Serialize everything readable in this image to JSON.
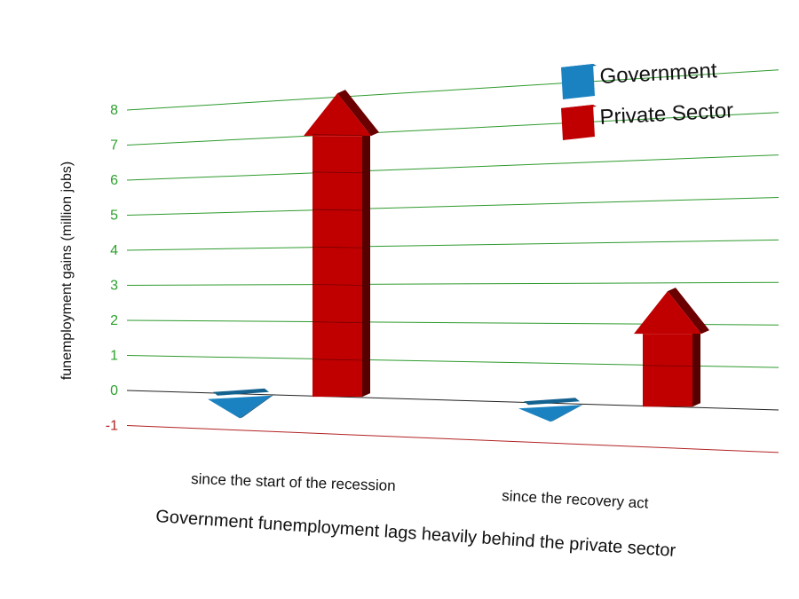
{
  "chart_data": {
    "type": "bar",
    "title": "",
    "xlabel": "Government funemployment lags heavily behind the private sector",
    "ylabel": "funemployment gains (million jobs)",
    "categories": [
      "since the start of the recession",
      "since the recovery act"
    ],
    "series": [
      {
        "name": "Government",
        "values": [
          -0.6,
          -0.4
        ],
        "color": "#1a82c0"
      },
      {
        "name": "Private Sector",
        "values": [
          8.1,
          2.8
        ],
        "color": "#c00000"
      }
    ],
    "ylim": [
      -1,
      8
    ],
    "yticks": [
      -1,
      0,
      1,
      2,
      3,
      4,
      5,
      6,
      7,
      8
    ],
    "grid": true,
    "grid_color": "#2e9a2e",
    "negative_grid_color": "#b22222",
    "tick_color_positive": "#2ca02c",
    "tick_color_negative": "#b22222",
    "legend_position": "top-right",
    "mark_style": "3d-arrows"
  }
}
